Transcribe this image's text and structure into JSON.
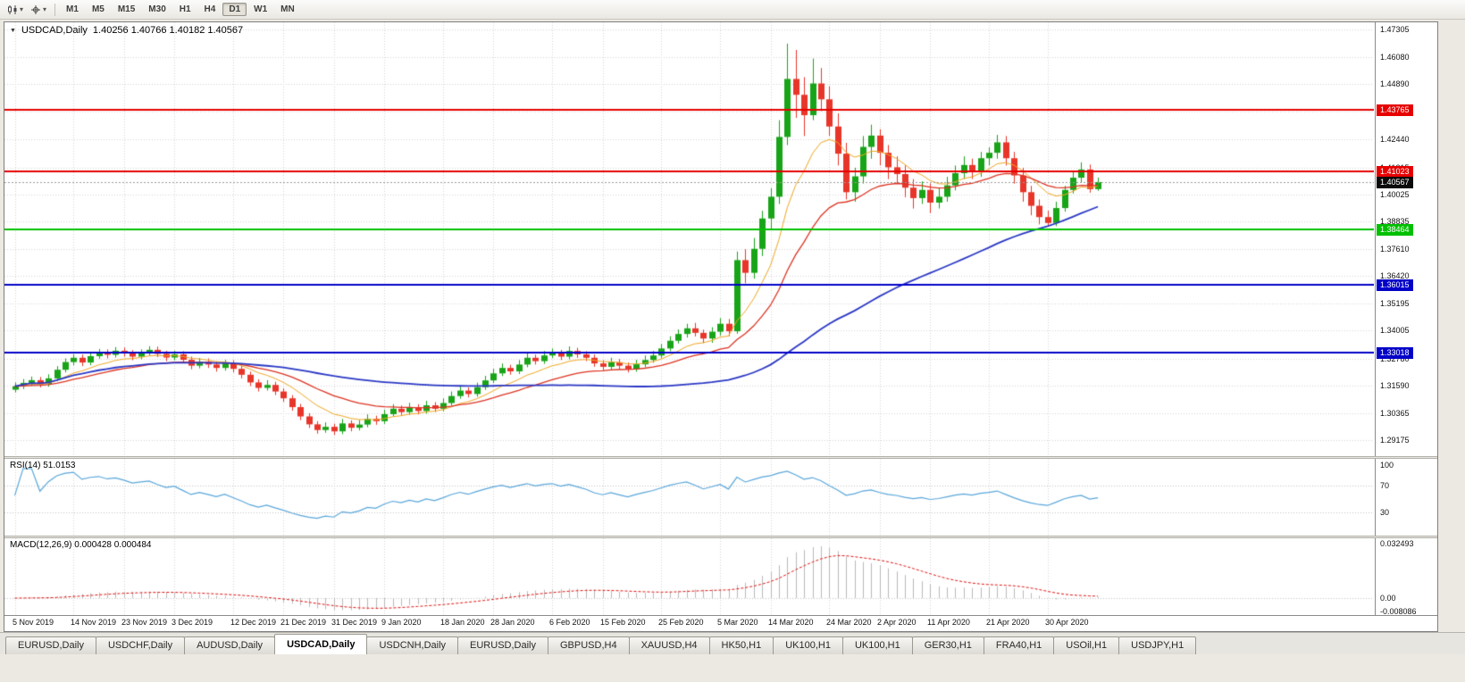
{
  "toolbar": {
    "timeframes": [
      "M1",
      "M5",
      "M15",
      "M30",
      "H1",
      "H4",
      "D1",
      "W1",
      "MN"
    ],
    "active_timeframe": "D1",
    "icons": [
      "candlestick-chart-icon",
      "dropdown-arrow-icon",
      "crosshair-icon",
      "dropdown-arrow-icon"
    ]
  },
  "chart": {
    "title": "USDCAD,Daily",
    "ohlc": "1.40256 1.40766 1.40182 1.40567"
  },
  "indicators": {
    "rsi": {
      "label": "RSI(14) 51.0153",
      "period": 14,
      "current": 51.0153,
      "color": "#5aa7db",
      "levels": [
        70,
        30
      ],
      "axis": [
        {
          "v": 100,
          "t": "100"
        },
        {
          "v": 70,
          "t": "70"
        },
        {
          "v": 30,
          "t": "30"
        }
      ]
    },
    "macd": {
      "label": "MACD(12,26,9) 0.000428 0.000484",
      "params": [
        12,
        26,
        9
      ],
      "current": [
        0.000428,
        0.000484
      ],
      "bar_color": "#b9b9b9",
      "signal_color": "#e01414",
      "axis": [
        {
          "v": 0.032493,
          "t": "0.032493"
        },
        {
          "v": 0,
          "t": "0.00"
        },
        {
          "v": -0.008086,
          "t": "-0.008086"
        }
      ]
    }
  },
  "chart_data": {
    "type": "candlestick",
    "symbol": "USDCAD",
    "period": "Daily",
    "up_color": "#18a418",
    "down_color": "#e8352a",
    "current_price": 1.40567,
    "price_ticks": [
      "1.47305",
      "1.46080",
      "1.44890",
      "1.43665",
      "1.42440",
      "1.41215",
      "1.40025",
      "1.38835",
      "1.37610",
      "1.36420",
      "1.35195",
      "1.34005",
      "1.32780",
      "1.31590",
      "1.30365",
      "1.29175"
    ],
    "hlines": [
      {
        "price": 1.43765,
        "color": "#e60000",
        "width": 2
      },
      {
        "price": 1.41023,
        "color": "#e60000",
        "width": 2
      },
      {
        "price": 1.38464,
        "color": "#00c000",
        "width": 2
      },
      {
        "price": 1.36015,
        "color": "#0202c8",
        "width": 2
      },
      {
        "price": 1.33018,
        "color": "#0202c8",
        "width": 2
      }
    ],
    "moving_averages": [
      {
        "period": 9,
        "method": "ema",
        "color": "#efa722",
        "line_width": 1
      },
      {
        "period": 21,
        "method": "ema",
        "color": "#dd3322",
        "line_width": 1.3
      },
      {
        "period": 55,
        "method": "sma",
        "color": "#2b38c5",
        "line_width": 1.8
      }
    ],
    "x_labels": [
      {
        "i": 0,
        "t": "5 Nov 2019"
      },
      {
        "i": 7,
        "t": "14 Nov 2019"
      },
      {
        "i": 13,
        "t": "23 Nov 2019"
      },
      {
        "i": 19,
        "t": "3 Dec 2019"
      },
      {
        "i": 26,
        "t": "12 Dec 2019"
      },
      {
        "i": 32,
        "t": "21 Dec 2019"
      },
      {
        "i": 38,
        "t": "31 Dec 2019"
      },
      {
        "i": 44,
        "t": "9 Jan 2020"
      },
      {
        "i": 51,
        "t": "18 Jan 2020"
      },
      {
        "i": 57,
        "t": "28 Jan 2020"
      },
      {
        "i": 64,
        "t": "6 Feb 2020"
      },
      {
        "i": 70,
        "t": "15 Feb 2020"
      },
      {
        "i": 77,
        "t": "25 Feb 2020"
      },
      {
        "i": 84,
        "t": "5 Mar 2020"
      },
      {
        "i": 90,
        "t": "14 Mar 2020"
      },
      {
        "i": 97,
        "t": "24 Mar 2020"
      },
      {
        "i": 103,
        "t": "2 Apr 2020"
      },
      {
        "i": 109,
        "t": "11 Apr 2020"
      },
      {
        "i": 116,
        "t": "21 Apr 2020"
      },
      {
        "i": 123,
        "t": "30 Apr 2020"
      }
    ],
    "candles": [
      [
        1.314,
        1.3172,
        1.3128,
        1.3155
      ],
      [
        1.3155,
        1.3187,
        1.3143,
        1.317
      ],
      [
        1.317,
        1.3198,
        1.3158,
        1.3182
      ],
      [
        1.3182,
        1.3196,
        1.315,
        1.3165
      ],
      [
        1.3165,
        1.3208,
        1.3153,
        1.319
      ],
      [
        1.319,
        1.3244,
        1.3178,
        1.3228
      ],
      [
        1.3228,
        1.3278,
        1.3216,
        1.3262
      ],
      [
        1.3262,
        1.3297,
        1.3248,
        1.3281
      ],
      [
        1.3281,
        1.3295,
        1.3244,
        1.326
      ],
      [
        1.326,
        1.3304,
        1.3248,
        1.3288
      ],
      [
        1.3288,
        1.332,
        1.3276,
        1.3304
      ],
      [
        1.3304,
        1.3318,
        1.3278,
        1.3294
      ],
      [
        1.3294,
        1.3328,
        1.3282,
        1.3312
      ],
      [
        1.3312,
        1.3326,
        1.3286,
        1.3301
      ],
      [
        1.3301,
        1.3315,
        1.327,
        1.3286
      ],
      [
        1.3286,
        1.3318,
        1.3274,
        1.3302
      ],
      [
        1.3302,
        1.3332,
        1.329,
        1.3316
      ],
      [
        1.3316,
        1.333,
        1.3284,
        1.3298
      ],
      [
        1.3298,
        1.3312,
        1.3266,
        1.3282
      ],
      [
        1.3282,
        1.3312,
        1.327,
        1.3296
      ],
      [
        1.3296,
        1.331,
        1.3258,
        1.3272
      ],
      [
        1.3272,
        1.3286,
        1.323,
        1.3246
      ],
      [
        1.3246,
        1.328,
        1.3234,
        1.3264
      ],
      [
        1.3264,
        1.3278,
        1.3236,
        1.3251
      ],
      [
        1.3251,
        1.3265,
        1.322,
        1.3236
      ],
      [
        1.3236,
        1.3272,
        1.3224,
        1.3256
      ],
      [
        1.3256,
        1.327,
        1.3216,
        1.3232
      ],
      [
        1.3232,
        1.3246,
        1.319,
        1.3206
      ],
      [
        1.3206,
        1.322,
        1.3156,
        1.3172
      ],
      [
        1.3172,
        1.3186,
        1.3132,
        1.3148
      ],
      [
        1.3148,
        1.3182,
        1.3136,
        1.3161
      ],
      [
        1.3161,
        1.3175,
        1.3116,
        1.3132
      ],
      [
        1.3132,
        1.3146,
        1.3086,
        1.3102
      ],
      [
        1.3102,
        1.3116,
        1.3047,
        1.3063
      ],
      [
        1.3063,
        1.3077,
        1.3006,
        1.3022
      ],
      [
        1.3022,
        1.3036,
        1.2971,
        1.2987
      ],
      [
        1.2987,
        1.3001,
        1.2946,
        1.2962
      ],
      [
        1.2962,
        1.2996,
        1.295,
        1.2976
      ],
      [
        1.2976,
        1.299,
        1.294,
        1.2956
      ],
      [
        1.2956,
        1.3011,
        1.2944,
        1.2991
      ],
      [
        1.2991,
        1.3005,
        1.2956,
        1.2972
      ],
      [
        1.2972,
        1.3006,
        1.296,
        1.2986
      ],
      [
        1.2986,
        1.3031,
        1.2974,
        1.3011
      ],
      [
        1.3011,
        1.3025,
        1.2985,
        1.3001
      ],
      [
        1.3001,
        1.3052,
        1.2989,
        1.3032
      ],
      [
        1.3032,
        1.3076,
        1.302,
        1.3056
      ],
      [
        1.3056,
        1.307,
        1.3026,
        1.3041
      ],
      [
        1.3041,
        1.3082,
        1.3029,
        1.3062
      ],
      [
        1.3062,
        1.3076,
        1.3031,
        1.3046
      ],
      [
        1.3046,
        1.3091,
        1.3034,
        1.3071
      ],
      [
        1.3071,
        1.3085,
        1.3041,
        1.3056
      ],
      [
        1.3056,
        1.3101,
        1.3044,
        1.3081
      ],
      [
        1.3081,
        1.3132,
        1.3069,
        1.3112
      ],
      [
        1.3112,
        1.3156,
        1.31,
        1.3136
      ],
      [
        1.3136,
        1.315,
        1.3106,
        1.3121
      ],
      [
        1.3121,
        1.3171,
        1.3109,
        1.3151
      ],
      [
        1.3151,
        1.3201,
        1.3139,
        1.3181
      ],
      [
        1.3181,
        1.3232,
        1.3169,
        1.3212
      ],
      [
        1.3212,
        1.3256,
        1.32,
        1.3236
      ],
      [
        1.3236,
        1.325,
        1.3206,
        1.3221
      ],
      [
        1.3221,
        1.3271,
        1.3209,
        1.3251
      ],
      [
        1.3251,
        1.3301,
        1.3239,
        1.3281
      ],
      [
        1.3281,
        1.3295,
        1.3251,
        1.3266
      ],
      [
        1.3266,
        1.3311,
        1.3254,
        1.3291
      ],
      [
        1.3291,
        1.3322,
        1.3279,
        1.3302
      ],
      [
        1.3302,
        1.3316,
        1.3271,
        1.3286
      ],
      [
        1.3286,
        1.3331,
        1.3274,
        1.3311
      ],
      [
        1.3311,
        1.3325,
        1.3281,
        1.3296
      ],
      [
        1.3296,
        1.331,
        1.3266,
        1.3281
      ],
      [
        1.3281,
        1.3295,
        1.3241,
        1.3256
      ],
      [
        1.3256,
        1.327,
        1.3226,
        1.3241
      ],
      [
        1.3241,
        1.3281,
        1.3229,
        1.3261
      ],
      [
        1.3261,
        1.3275,
        1.3231,
        1.3246
      ],
      [
        1.3246,
        1.326,
        1.3216,
        1.3231
      ],
      [
        1.3231,
        1.3272,
        1.3219,
        1.3252
      ],
      [
        1.3252,
        1.3291,
        1.324,
        1.3271
      ],
      [
        1.3271,
        1.3311,
        1.3259,
        1.3291
      ],
      [
        1.3291,
        1.3342,
        1.3279,
        1.3322
      ],
      [
        1.3322,
        1.3376,
        1.331,
        1.3356
      ],
      [
        1.3356,
        1.3406,
        1.3344,
        1.3386
      ],
      [
        1.3386,
        1.3431,
        1.337,
        1.3411
      ],
      [
        1.3411,
        1.3435,
        1.3375,
        1.3391
      ],
      [
        1.3391,
        1.3405,
        1.3346,
        1.3366
      ],
      [
        1.3366,
        1.3416,
        1.3347,
        1.3396
      ],
      [
        1.3396,
        1.3456,
        1.3379,
        1.3431
      ],
      [
        1.3431,
        1.3452,
        1.3376,
        1.3398
      ],
      [
        1.3398,
        1.375,
        1.3387,
        1.3712
      ],
      [
        1.3712,
        1.376,
        1.361,
        1.3656
      ],
      [
        1.3656,
        1.381,
        1.363,
        1.3762
      ],
      [
        1.3762,
        1.393,
        1.373,
        1.3896
      ],
      [
        1.3896,
        1.403,
        1.385,
        1.3992
      ],
      [
        1.3992,
        1.433,
        1.396,
        1.4256
      ],
      [
        1.4256,
        1.4668,
        1.422,
        1.4512
      ],
      [
        1.4512,
        1.464,
        1.434,
        1.4442
      ],
      [
        1.4442,
        1.452,
        1.426,
        1.4352
      ],
      [
        1.4352,
        1.4602,
        1.433,
        1.4492
      ],
      [
        1.4492,
        1.456,
        1.437,
        1.4422
      ],
      [
        1.4422,
        1.448,
        1.426,
        1.4302
      ],
      [
        1.4302,
        1.436,
        1.413,
        1.4182
      ],
      [
        1.4182,
        1.423,
        1.398,
        1.4012
      ],
      [
        1.4012,
        1.412,
        1.397,
        1.4082
      ],
      [
        1.4082,
        1.426,
        1.405,
        1.4212
      ],
      [
        1.4212,
        1.431,
        1.416,
        1.4262
      ],
      [
        1.4262,
        1.429,
        1.413,
        1.4186
      ],
      [
        1.4186,
        1.422,
        1.407,
        1.4122
      ],
      [
        1.4122,
        1.417,
        1.405,
        1.4092
      ],
      [
        1.4092,
        1.413,
        1.399,
        1.4032
      ],
      [
        1.4032,
        1.407,
        1.394,
        1.3986
      ],
      [
        1.3986,
        1.406,
        1.396,
        1.4022
      ],
      [
        1.4022,
        1.405,
        1.392,
        1.3966
      ],
      [
        1.3966,
        1.403,
        1.394,
        1.3992
      ],
      [
        1.3992,
        1.408,
        1.397,
        1.4042
      ],
      [
        1.4042,
        1.413,
        1.402,
        1.4096
      ],
      [
        1.4096,
        1.417,
        1.407,
        1.4132
      ],
      [
        1.4132,
        1.416,
        1.407,
        1.4106
      ],
      [
        1.4106,
        1.419,
        1.408,
        1.4162
      ],
      [
        1.4162,
        1.421,
        1.413,
        1.4186
      ],
      [
        1.4186,
        1.4265,
        1.416,
        1.4232
      ],
      [
        1.4232,
        1.426,
        1.413,
        1.4162
      ],
      [
        1.4162,
        1.419,
        1.405,
        1.4086
      ],
      [
        1.4086,
        1.412,
        1.397,
        1.4012
      ],
      [
        1.4012,
        1.404,
        1.391,
        1.3952
      ],
      [
        1.3952,
        1.398,
        1.387,
        1.3902
      ],
      [
        1.3902,
        1.393,
        1.386,
        1.3876
      ],
      [
        1.3876,
        1.397,
        1.3862,
        1.3942
      ],
      [
        1.3942,
        1.404,
        1.3926,
        1.4022
      ],
      [
        1.4022,
        1.41,
        1.4006,
        1.4076
      ],
      [
        1.4076,
        1.4144,
        1.4056,
        1.4112
      ],
      [
        1.4112,
        1.4134,
        1.401,
        1.40256
      ],
      [
        1.40256,
        1.40766,
        1.40182,
        1.40567
      ]
    ]
  },
  "tabs": [
    {
      "label": "EURUSD,Daily",
      "active": false
    },
    {
      "label": "USDCHF,Daily",
      "active": false
    },
    {
      "label": "AUDUSD,Daily",
      "active": false
    },
    {
      "label": "USDCAD,Daily",
      "active": true
    },
    {
      "label": "USDCNH,Daily",
      "active": false
    },
    {
      "label": "EURUSD,Daily",
      "active": false
    },
    {
      "label": "GBPUSD,H4",
      "active": false
    },
    {
      "label": "XAUUSD,H4",
      "active": false
    },
    {
      "label": "HK50,H1",
      "active": false
    },
    {
      "label": "UK100,H1",
      "active": false
    },
    {
      "label": "UK100,H1",
      "active": false
    },
    {
      "label": "GER30,H1",
      "active": false
    },
    {
      "label": "FRA40,H1",
      "active": false
    },
    {
      "label": "USOil,H1",
      "active": false
    },
    {
      "label": "USDJPY,H1",
      "active": false
    }
  ]
}
